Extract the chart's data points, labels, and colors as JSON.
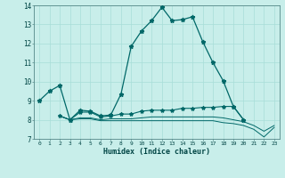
{
  "xlabel": "Humidex (Indice chaleur)",
  "background_color": "#c8eeea",
  "grid_color": "#a8ddd8",
  "line_color": "#006868",
  "xlim": [
    -0.5,
    23.5
  ],
  "ylim": [
    7,
    14
  ],
  "xticks": [
    0,
    1,
    2,
    3,
    4,
    5,
    6,
    7,
    8,
    9,
    10,
    11,
    12,
    13,
    14,
    15,
    16,
    17,
    18,
    19,
    20,
    21,
    22,
    23
  ],
  "yticks": [
    7,
    8,
    9,
    10,
    11,
    12,
    13,
    14
  ],
  "series1_x": [
    0,
    1,
    2,
    3,
    4,
    5,
    6,
    7,
    8,
    9,
    10,
    11,
    12,
    13,
    14,
    15,
    16,
    17,
    18,
    19,
    20
  ],
  "series1_y": [
    9.0,
    9.5,
    9.8,
    8.0,
    8.5,
    8.45,
    8.2,
    8.25,
    9.35,
    11.85,
    12.65,
    13.2,
    13.9,
    13.2,
    13.25,
    13.4,
    12.1,
    11.0,
    10.05,
    8.7,
    8.0
  ],
  "series2_x": [
    2,
    3,
    4,
    5,
    6,
    7,
    8,
    9,
    10,
    11,
    12,
    13,
    14,
    15,
    16,
    17,
    18,
    19,
    20
  ],
  "series2_y": [
    8.2,
    8.0,
    8.4,
    8.4,
    8.15,
    8.2,
    8.3,
    8.3,
    8.45,
    8.5,
    8.5,
    8.5,
    8.6,
    8.6,
    8.65,
    8.65,
    8.7,
    8.7,
    8.0
  ],
  "series3_x": [
    2,
    3,
    4,
    5,
    6,
    7,
    8,
    9,
    10,
    11,
    12,
    13,
    14,
    15,
    16,
    17,
    18,
    19,
    20,
    21,
    22,
    23
  ],
  "series3_y": [
    8.2,
    8.0,
    8.1,
    8.1,
    8.0,
    8.05,
    8.05,
    8.05,
    8.1,
    8.15,
    8.15,
    8.15,
    8.15,
    8.15,
    8.15,
    8.15,
    8.1,
    8.0,
    7.9,
    7.7,
    7.4,
    7.7
  ],
  "series4_x": [
    2,
    3,
    4,
    5,
    6,
    7,
    8,
    9,
    10,
    11,
    12,
    13,
    14,
    15,
    16,
    17,
    18,
    19,
    20,
    21,
    22,
    23
  ],
  "series4_y": [
    8.2,
    8.0,
    8.05,
    8.05,
    7.95,
    7.95,
    7.95,
    7.95,
    7.95,
    7.95,
    7.95,
    7.95,
    7.95,
    7.95,
    7.95,
    7.95,
    7.85,
    7.8,
    7.7,
    7.5,
    7.1,
    7.6
  ]
}
